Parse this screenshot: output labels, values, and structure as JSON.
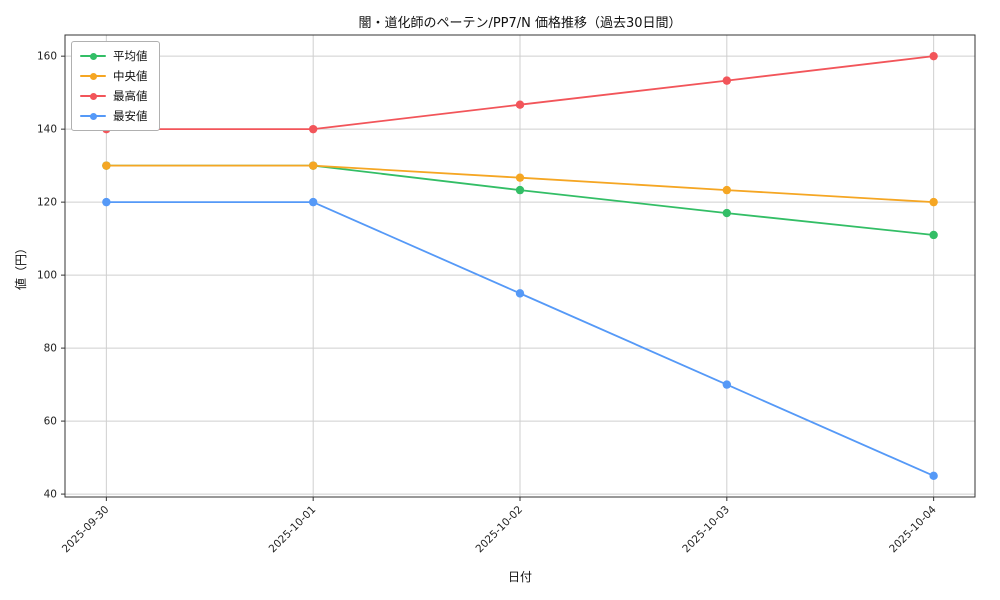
{
  "chart_data": {
    "type": "line",
    "title": "闇・道化師のペーテン/PP7/N 価格推移（過去30日間）",
    "xlabel": "日付",
    "ylabel": "値（円）",
    "x_labels": [
      "2025-09-30",
      "2025-10-01",
      "2025-10-02",
      "2025-10-03",
      "2025-10-04"
    ],
    "y_ticks": [
      40,
      60,
      80,
      100,
      120,
      140,
      160
    ],
    "xlim": [
      -0.2,
      4.2
    ],
    "ylim": [
      39.2,
      165.8
    ],
    "grid": true,
    "legend_position": "upper-left",
    "series": [
      {
        "name": "平均値",
        "color": "#33be66",
        "values": [
          130,
          130,
          123.3,
          117,
          111
        ]
      },
      {
        "name": "中央値",
        "color": "#f5a623",
        "values": [
          130,
          130,
          126.7,
          123.3,
          120
        ]
      },
      {
        "name": "最高値",
        "color": "#f2555a",
        "values": [
          140,
          140,
          146.7,
          153.3,
          160
        ]
      },
      {
        "name": "最安値",
        "color": "#5599f7",
        "values": [
          120,
          120,
          95,
          70,
          45
        ]
      }
    ]
  }
}
